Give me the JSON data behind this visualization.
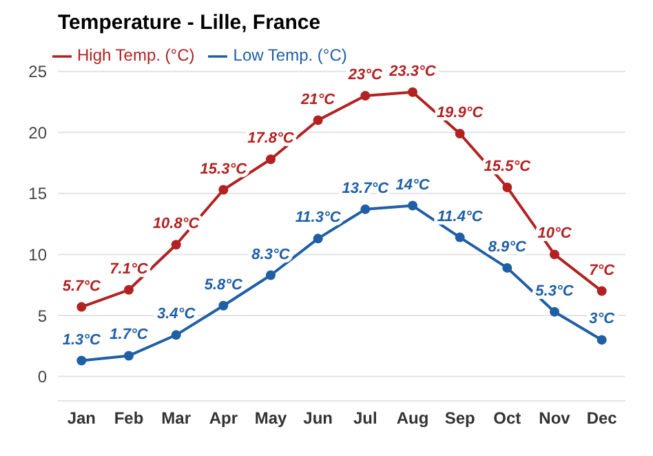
{
  "chart_data": {
    "type": "line",
    "title": "Temperature - Lille, France",
    "categories": [
      "Jan",
      "Feb",
      "Mar",
      "Apr",
      "May",
      "Jun",
      "Jul",
      "Aug",
      "Sep",
      "Oct",
      "Nov",
      "Dec"
    ],
    "series": [
      {
        "name": "Low Temp. (°C)",
        "color": "#1f5fa6",
        "values": [
          1.3,
          1.7,
          3.4,
          5.8,
          8.3,
          11.3,
          13.7,
          14,
          11.4,
          8.9,
          5.3,
          3
        ],
        "value_labels": [
          "1.3°C",
          "1.7°C",
          "3.4°C",
          "5.8°C",
          "8.3°C",
          "11.3°C",
          "13.7°C",
          "14°C",
          "11.4°C",
          "8.9°C",
          "5.3°C",
          "3°C"
        ]
      },
      {
        "name": "High Temp. (°C)",
        "color": "#b22222",
        "values": [
          5.7,
          7.1,
          10.8,
          15.3,
          17.8,
          21,
          23,
          23.3,
          19.9,
          15.5,
          10,
          7
        ],
        "value_labels": [
          "5.7°C",
          "7.1°C",
          "10.8°C",
          "15.3°C",
          "17.8°C",
          "21°C",
          "23°C",
          "23.3°C",
          "19.9°C",
          "15.5°C",
          "10°C",
          "7°C"
        ]
      }
    ],
    "ylim": [
      -2,
      25
    ],
    "yticks": [
      0,
      5,
      10,
      15,
      20,
      25
    ],
    "grid": "y",
    "legend": "top left",
    "marker": "circle",
    "line_style": "solid"
  }
}
